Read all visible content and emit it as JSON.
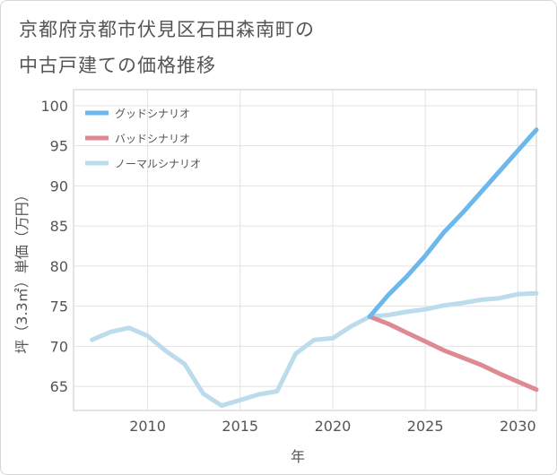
{
  "page": {
    "title_line1": "京都府京都市伏見区石田森南町の",
    "title_line2": "中古戸建ての価格推移"
  },
  "chart_data": {
    "type": "line",
    "title": "京都府京都市伏見区石田森南町の中古戸建ての価格推移",
    "xlabel": "年",
    "ylabel": "坪（3.3㎡）単価（万円）",
    "xlim": [
      2006,
      2031
    ],
    "ylim": [
      62,
      102
    ],
    "x_ticks": [
      2010,
      2015,
      2020,
      2025,
      2030
    ],
    "y_ticks": [
      65,
      70,
      75,
      80,
      85,
      90,
      95,
      100
    ],
    "grid": true,
    "legend_position": "top-left",
    "series": [
      {
        "name": "グッドシナリオ",
        "color": "#6cb8ec",
        "x": [
          2022,
          2023,
          2024,
          2025,
          2026,
          2027,
          2028,
          2029,
          2030,
          2031
        ],
        "values": [
          73.7,
          76.4,
          78.7,
          81.3,
          84.2,
          86.6,
          89.2,
          91.8,
          94.4,
          97.0
        ]
      },
      {
        "name": "バッドシナリオ",
        "color": "#de8a92",
        "x": [
          2022,
          2023,
          2024,
          2025,
          2026,
          2027,
          2028,
          2029,
          2030,
          2031
        ],
        "values": [
          73.7,
          72.8,
          71.7,
          70.6,
          69.5,
          68.6,
          67.7,
          66.6,
          65.6,
          64.6
        ]
      },
      {
        "name": "ノーマルシナリオ",
        "color": "#bcdced",
        "x": [
          2007,
          2008,
          2009,
          2010,
          2011,
          2012,
          2013,
          2014,
          2015,
          2016,
          2017,
          2018,
          2019,
          2020,
          2021,
          2022,
          2023,
          2024,
          2025,
          2026,
          2027,
          2028,
          2029,
          2030,
          2031
        ],
        "values": [
          70.8,
          71.8,
          72.3,
          71.3,
          69.4,
          67.8,
          64.1,
          62.6,
          63.3,
          64.0,
          64.4,
          69.1,
          70.8,
          71.0,
          72.5,
          73.7,
          73.9,
          74.3,
          74.6,
          75.1,
          75.4,
          75.8,
          76.0,
          76.5,
          76.6
        ]
      }
    ]
  }
}
